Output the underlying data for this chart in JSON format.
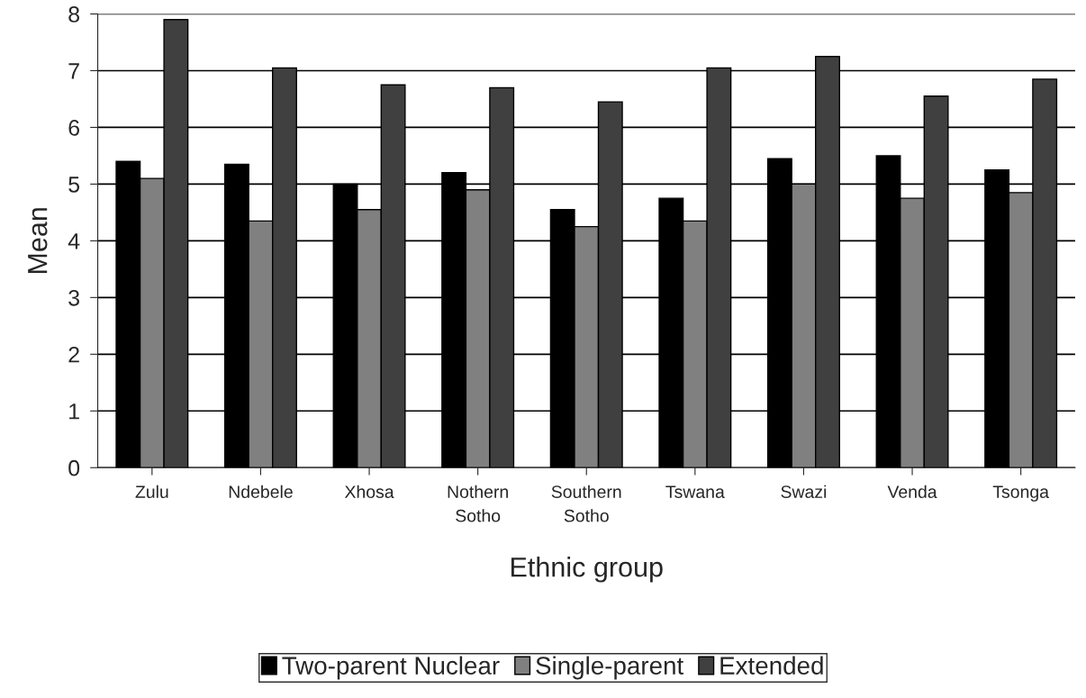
{
  "chart_data": {
    "type": "bar",
    "xlabel": "Ethnic group",
    "ylabel": "Mean",
    "categories": [
      "Zulu",
      "Ndebele",
      "Xhosa",
      "Nothern\nSotho",
      "Southern\nSotho",
      "Tswana",
      "Swazi",
      "Venda",
      "Tsonga"
    ],
    "series": [
      {
        "name": "Two-parent Nuclear",
        "color": "#000000",
        "values": [
          5.4,
          5.35,
          5.0,
          5.2,
          4.55,
          4.75,
          5.45,
          5.5,
          5.25
        ]
      },
      {
        "name": "Single-parent",
        "color": "#808080",
        "values": [
          5.1,
          4.35,
          4.55,
          4.9,
          4.25,
          4.35,
          5.0,
          4.75,
          4.85
        ]
      },
      {
        "name": "Extended",
        "color": "#404040",
        "values": [
          7.9,
          7.05,
          6.75,
          6.7,
          6.45,
          7.05,
          7.25,
          6.55,
          6.85
        ]
      }
    ],
    "ylim": [
      0,
      8
    ],
    "yticks": [
      0,
      1,
      2,
      3,
      4,
      5,
      6,
      7,
      8
    ],
    "grid": "y",
    "legend": "bottom"
  }
}
